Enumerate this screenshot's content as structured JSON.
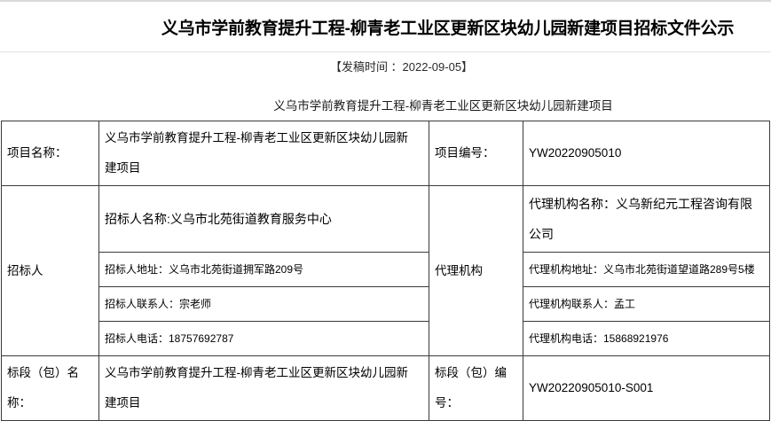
{
  "header": {
    "title": "义乌市学前教育提升工程-柳青老工业区更新区块幼儿园新建项目招标文件公示",
    "publish_line": "【发稿时间 ：2022-09-05】",
    "subtitle": "义乌市学前教育提升工程-柳青老工业区更新区块幼儿园新建项目"
  },
  "table": {
    "project_name": {
      "label": "项目名称：",
      "value": "义乌市学前教育提升工程-柳青老工业区更新区块幼儿园新建项目"
    },
    "project_number": {
      "label": "项目编号：",
      "value": "YW20220905010"
    },
    "bidder": {
      "label": "招标人",
      "items": [
        "招标人名称:义乌市北苑街道教育服务中心",
        "招标人地址：义乌市北苑街道拥军路209号",
        "招标人联系人：宗老师",
        "招标人电话：18757692787"
      ]
    },
    "agency": {
      "label": "代理机构",
      "items": [
        "代理机构名称：义乌新纪元工程咨询有限公司",
        "代理机构地址：义乌市北苑街道望道路289号5楼",
        "代理机构联系人：孟工",
        "代理机构电话：15868921976"
      ]
    },
    "section_name": {
      "label": "标段（包）名称：",
      "value": "义乌市学前教育提升工程-柳青老工业区更新区块幼儿园新建项目"
    },
    "section_number": {
      "label": "标段（包）编号：",
      "value": "YW20220905010-S001"
    }
  }
}
